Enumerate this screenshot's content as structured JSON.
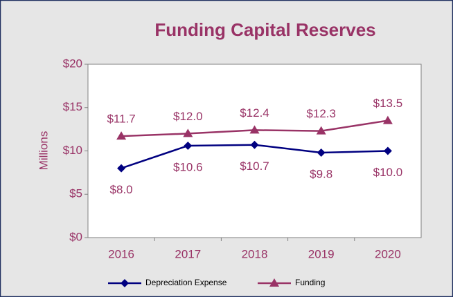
{
  "chart_data": {
    "type": "line",
    "title": "Funding Capital Reserves",
    "y_label": "Millions",
    "categories": [
      "2016",
      "2017",
      "2018",
      "2019",
      "2020"
    ],
    "series": [
      {
        "name": "Depreciation Expense",
        "color": "#000080",
        "marker": "diamond",
        "values": [
          8.0,
          10.6,
          10.7,
          9.8,
          10.0
        ],
        "value_labels": [
          "$8.0",
          "$10.6",
          "$10.7",
          "$9.8",
          "$10.0"
        ]
      },
      {
        "name": "Funding",
        "color": "#993366",
        "marker": "triangle",
        "values": [
          11.7,
          12.0,
          12.4,
          12.3,
          13.5
        ],
        "value_labels": [
          "$11.7",
          "$12.0",
          "$12.4",
          "$12.3",
          "$13.5"
        ]
      }
    ],
    "ylim": [
      0,
      20
    ],
    "yticks": [
      {
        "value": 0,
        "label": "$0"
      },
      {
        "value": 5,
        "label": "$5"
      },
      {
        "value": 10,
        "label": "$10"
      },
      {
        "value": 15,
        "label": "$15"
      },
      {
        "value": 20,
        "label": "$20"
      }
    ],
    "grid": false,
    "legend": "bottom"
  }
}
